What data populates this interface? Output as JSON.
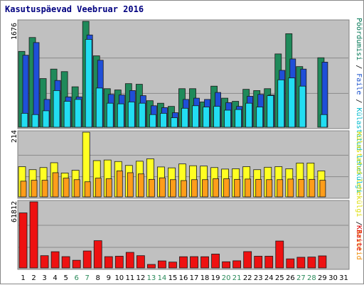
{
  "title": "Kasutuspäevad Veebruar 2016",
  "legend": {
    "top": [
      {
        "text": "Pöördumisi",
        "color": "#007755"
      },
      {
        "text": " / ",
        "color": "#000000"
      },
      {
        "text": "Faile",
        "color": "#1a52cc"
      },
      {
        "text": " / ",
        "color": "#000000"
      },
      {
        "text": "Külastatud lehekülgi",
        "color": "#00bbcc"
      }
    ],
    "middle": [
      {
        "text": "Külastatud lehekülgi",
        "color": "#dddd00"
      },
      {
        "text": " / ",
        "color": "#000000"
      },
      {
        "text": "Arvutid",
        "color": "#ee8800"
      }
    ],
    "bottom": [
      {
        "text": "KBaite",
        "color": "#dd0000"
      }
    ]
  },
  "colors": {
    "panel_bg": "#c0c0c0",
    "hits": "#1f8a5a",
    "files": "#1f4fd8",
    "pages": "#22ddf2",
    "visits": "#ffff22",
    "sites": "#ff9d1a",
    "kbytes": "#ee1111",
    "weekend_label": "#2a8a5a"
  },
  "chart_data": {
    "type": "bar",
    "days": [
      "1",
      "2",
      "3",
      "4",
      "5",
      "6",
      "7",
      "8",
      "9",
      "10",
      "11",
      "12",
      "13",
      "14",
      "15",
      "16",
      "17",
      "18",
      "19",
      "20",
      "21",
      "22",
      "23",
      "24",
      "25",
      "26",
      "27",
      "28",
      "29",
      "30",
      "31"
    ],
    "weekend_days": [
      "6",
      "7",
      "13",
      "14",
      "20",
      "21",
      "27",
      "28"
    ],
    "panels": [
      {
        "ymax_label": "1676",
        "ymax": 1676,
        "series": [
          {
            "name": "Pöördumisi",
            "values": [
              1200,
              1420,
              770,
              920,
              880,
              640,
              1676,
              1130,
              610,
              590,
              690,
              680,
              420,
              380,
              330,
              610,
              610,
              400,
              650,
              460,
              410,
              600,
              580,
              610,
              1160,
              1480,
              960,
              0,
              1100,
              0,
              0
            ]
          },
          {
            "name": "Faile",
            "values": [
              1140,
              1340,
              440,
              740,
              480,
              480,
              1460,
              1060,
              520,
              510,
              580,
              500,
              340,
              310,
              230,
              440,
              460,
              440,
              550,
              390,
              330,
              490,
              520,
              510,
              900,
              1080,
              920,
              0,
              1030,
              0,
              0
            ]
          },
          {
            "name": "Külastatud lehekülgi",
            "values": [
              220,
              200,
              260,
              580,
              410,
              440,
              1390,
              620,
              380,
              370,
              400,
              380,
              200,
              220,
              150,
              300,
              340,
              320,
              330,
              270,
              280,
              380,
              320,
              500,
              750,
              780,
              650,
              0,
              200,
              0,
              0
            ]
          }
        ]
      },
      {
        "ymax_label": "214",
        "ymax": 214,
        "series": [
          {
            "name": "Külastatud lehekülgi",
            "values": [
              100,
              90,
              97,
              113,
              79,
              88,
              214,
              120,
              122,
              117,
              104,
              118,
              126,
              99,
              96,
              109,
              103,
              102,
              97,
              92,
              93,
              100,
              90,
              98,
              100,
              93,
              112,
              112,
              86,
              0,
              0
            ]
          },
          {
            "name": "Arvutid",
            "values": [
              52,
              55,
              55,
              80,
              62,
              57,
              50,
              62,
              60,
              86,
              80,
              76,
              58,
              63,
              57,
              54,
              57,
              57,
              60,
              60,
              58,
              59,
              58,
              57,
              57,
              59,
              58,
              58,
              55,
              0,
              0
            ]
          }
        ]
      },
      {
        "ymax_label": "61812",
        "ymax": 61812,
        "series": [
          {
            "name": "KBaite",
            "values": [
              51500,
              61812,
              11500,
              15200,
              10600,
              7200,
              15900,
              25500,
              10600,
              11000,
              14600,
              11500,
              3300,
              6600,
              5500,
              10500,
              10600,
              10500,
              13000,
              5800,
              6700,
              15300,
              11000,
              11000,
              25200,
              8500,
              10000,
              10200,
              11300,
              0,
              0
            ]
          }
        ]
      }
    ]
  }
}
